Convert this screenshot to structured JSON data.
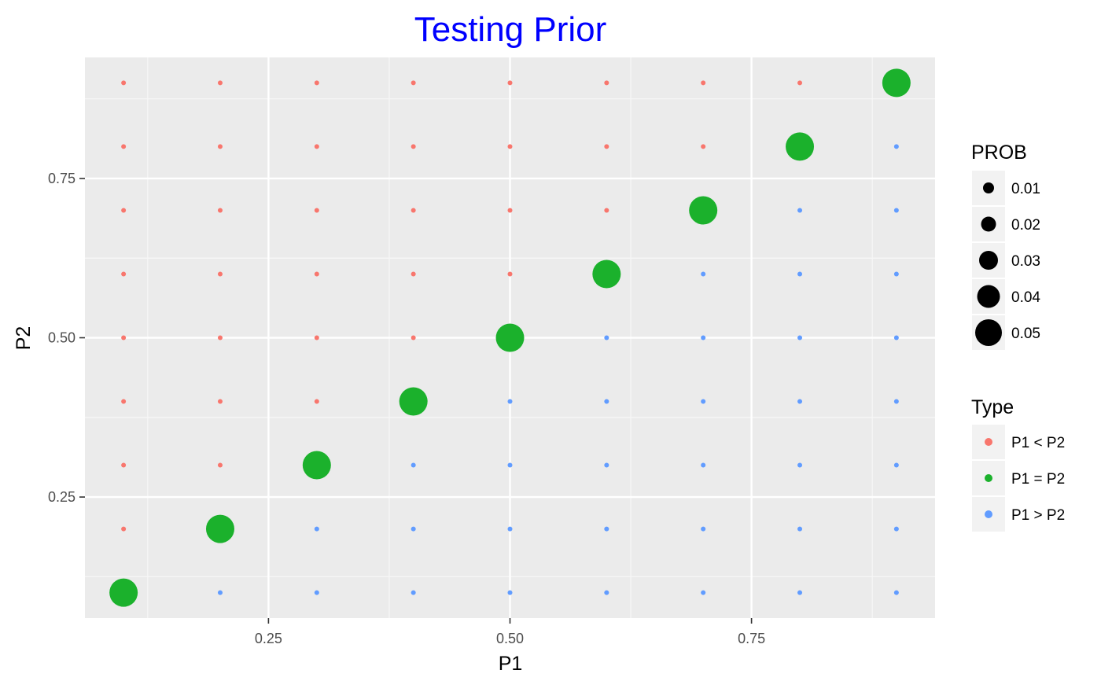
{
  "chart_data": {
    "type": "scatter",
    "title": "Testing Prior",
    "title_color": "#0000FF",
    "xlabel": "P1",
    "ylabel": "P2",
    "xlim": [
      0.06,
      0.94
    ],
    "ylim": [
      0.06,
      0.94
    ],
    "x_ticks": [
      0.25,
      0.5,
      0.75
    ],
    "x_tick_labels": [
      "0.25",
      "0.50",
      "0.75"
    ],
    "y_ticks": [
      0.25,
      0.5,
      0.75
    ],
    "y_tick_labels": [
      "0.25",
      "0.50",
      "0.75"
    ],
    "grid": true,
    "panel_background": "#EBEBEB",
    "grid_values": [
      0.1,
      0.2,
      0.3,
      0.4,
      0.5,
      0.6,
      0.7,
      0.8,
      0.9
    ],
    "types": [
      {
        "label": "P1 < P2",
        "color": "#F8766D"
      },
      {
        "label": "P1 = P2",
        "color": "#1BB12C"
      },
      {
        "label": "P1 > P2",
        "color": "#619CFF"
      }
    ],
    "size_legend": {
      "title": "PROB",
      "values": [
        0.01,
        0.02,
        0.03,
        0.04,
        0.05
      ],
      "labels": [
        "0.01",
        "0.02",
        "0.03",
        "0.04",
        "0.05"
      ]
    },
    "color_legend_title": "Type",
    "legend_position": "right",
    "prob_off_diagonal": 0.0069,
    "prob_diagonal": 0.049
  }
}
